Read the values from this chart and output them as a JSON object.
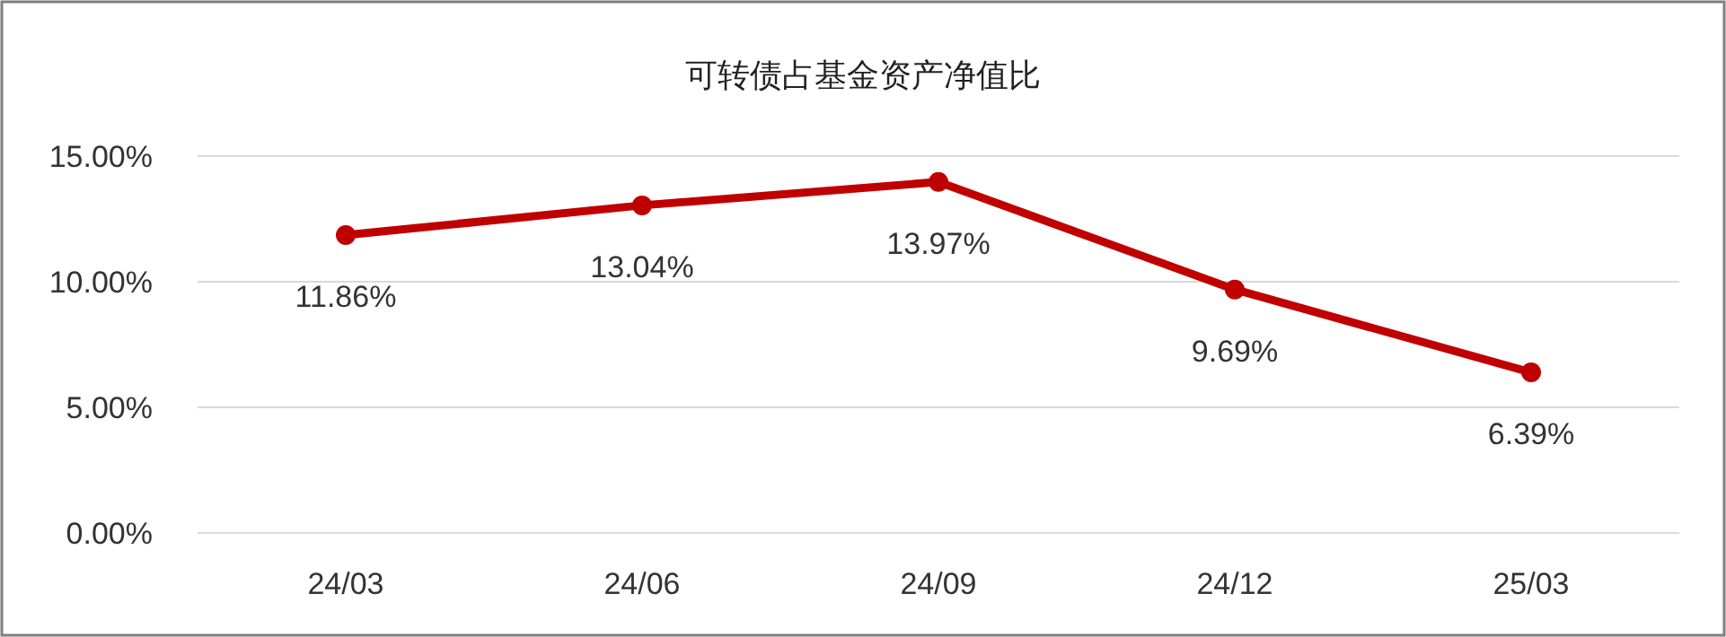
{
  "chart_data": {
    "type": "line",
    "title": "可转债占基金资产净值比",
    "categories": [
      "24/03",
      "24/06",
      "24/09",
      "24/12",
      "25/03"
    ],
    "series": [
      {
        "color": "#c00000",
        "values": [
          11.86,
          13.04,
          13.97,
          9.69,
          6.39
        ],
        "value_labels": [
          "11.86%",
          "13.04%",
          "13.97%",
          "9.69%",
          "6.39%"
        ]
      }
    ],
    "ylim": [
      0,
      15
    ],
    "yticks": [
      {
        "value": 0,
        "label": "0.00%"
      },
      {
        "value": 5,
        "label": "5.00%"
      },
      {
        "value": 10,
        "label": "10.00%"
      },
      {
        "value": 15,
        "label": "15.00%"
      }
    ],
    "grid": "y",
    "marker": "circle",
    "line_style": "solid"
  }
}
